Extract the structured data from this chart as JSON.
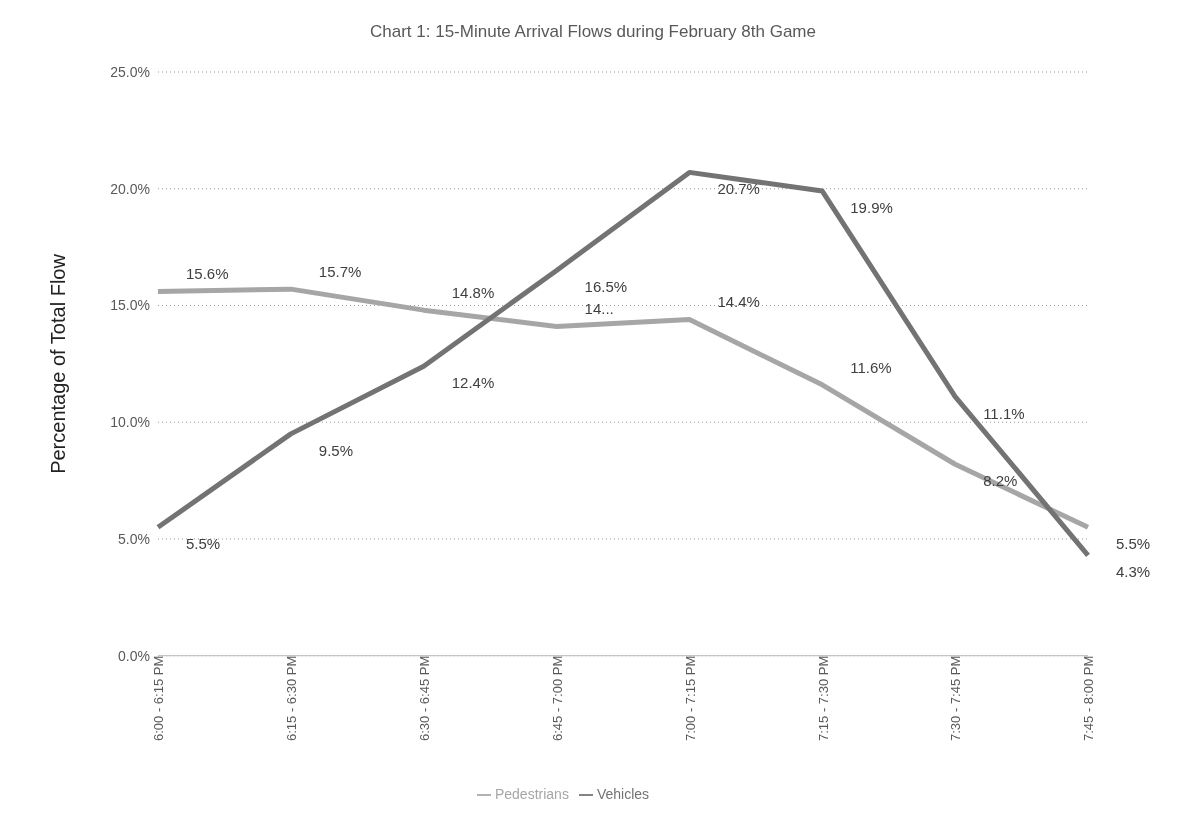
{
  "chart_data": {
    "type": "line",
    "title": "Chart 1: 15-Minute Arrival Flows during February 8th Game",
    "ylabel": "Percentage of Total Flow",
    "categories": [
      "6:00 - 6:15 PM",
      "6:15 - 6:30 PM",
      "6:30 - 6:45 PM",
      "6:45 - 7:00 PM",
      "7:00 - 7:15 PM",
      "7:15 - 7:30 PM",
      "7:30 - 7:45 PM",
      "7:45 - 8:00 PM"
    ],
    "series": [
      {
        "name": "Pedestrians",
        "color": "#a6a6a6",
        "values": [
          15.6,
          15.7,
          14.8,
          14.1,
          14.4,
          11.6,
          8.2,
          5.5
        ],
        "value_labels": [
          "15.6%",
          "15.7%",
          "14.8%",
          "14...",
          "14.4%",
          "11.6%",
          "8.2%",
          "5.5%"
        ]
      },
      {
        "name": "Vehicles",
        "color": "#737373",
        "values": [
          5.5,
          9.5,
          12.4,
          16.5,
          20.7,
          19.9,
          11.1,
          4.3
        ],
        "value_labels": [
          "5.5%",
          "9.5%",
          "12.4%",
          "16.5%",
          "20.7%",
          "19.9%",
          "11.1%",
          "4.3%"
        ]
      }
    ],
    "ylim": [
      0,
      25
    ],
    "yticks": [
      {
        "value": 0,
        "label": "0.0%"
      },
      {
        "value": 5,
        "label": "5.0%"
      },
      {
        "value": 10,
        "label": "10.0%"
      },
      {
        "value": 15,
        "label": "15.0%"
      },
      {
        "value": 20,
        "label": "20.0%"
      },
      {
        "value": 25,
        "label": "25.0%"
      }
    ],
    "grid": "y",
    "legend": "bottom",
    "marker": "none",
    "line_style": "solid"
  }
}
